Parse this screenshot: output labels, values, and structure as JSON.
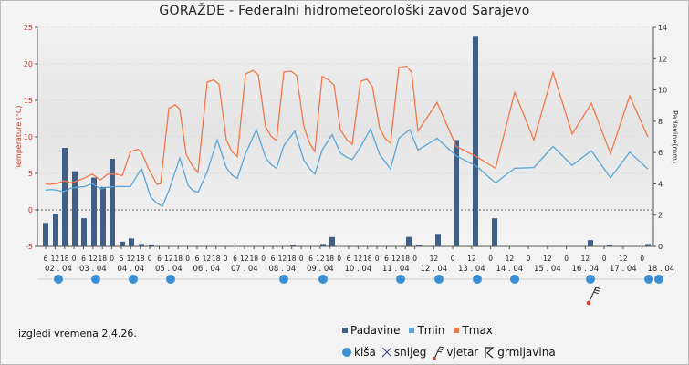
{
  "title": "GORAŽDE - Federalni hidrometeorološki zavod Sarajevo",
  "caption": "izgledi vremena 2.4.26.",
  "legend": {
    "series": [
      {
        "label": "Padavine",
        "color": "#3f5f86"
      },
      {
        "label": "Tmin",
        "color": "#5aa5d6"
      },
      {
        "label": "Tmax",
        "color": "#f0784a"
      }
    ],
    "symbols": [
      {
        "label": "kiša",
        "icon": "rain-dot-icon"
      },
      {
        "label": "snijeg",
        "icon": "snow-star-icon"
      },
      {
        "label": "vjetar",
        "icon": "wind-flag-icon"
      },
      {
        "label": "grmljavina",
        "icon": "thunder-icon"
      }
    ]
  },
  "chart_data": {
    "type": "line",
    "ylabel": "Temperature (°C)",
    "y2label": "Padavine(mm)",
    "ylim": [
      -5,
      25
    ],
    "y2lim": [
      0,
      14
    ],
    "yticks": [
      -5,
      0,
      5,
      10,
      15,
      20,
      25
    ],
    "y2ticks": [
      0,
      2,
      4,
      6,
      8,
      10,
      12,
      14
    ],
    "grid": true,
    "x_days": [
      {
        "label": "02 . 04",
        "hours": [
          6,
          12,
          18
        ]
      },
      {
        "label": "03 . 04",
        "hours": [
          0,
          6,
          12,
          18
        ]
      },
      {
        "label": "04 . 04",
        "hours": [
          0,
          6,
          12,
          18
        ]
      },
      {
        "label": "05 . 04",
        "hours": [
          0,
          6,
          12,
          18
        ]
      },
      {
        "label": "06 . 04",
        "hours": [
          0,
          6,
          12,
          18
        ]
      },
      {
        "label": "07 . 04",
        "hours": [
          0,
          6,
          12,
          18
        ]
      },
      {
        "label": "08 . 04",
        "hours": [
          0,
          6,
          12,
          18
        ]
      },
      {
        "label": "09 . 04",
        "hours": [
          0,
          6,
          12,
          18
        ]
      },
      {
        "label": "10 . 04",
        "hours": [
          0,
          6,
          12,
          18
        ]
      },
      {
        "label": "11 . 04",
        "hours": [
          0,
          6,
          12,
          18
        ]
      },
      {
        "label": "12 . 04",
        "hours": [
          0,
          12
        ]
      },
      {
        "label": "13 . 04",
        "hours": [
          0,
          12
        ]
      },
      {
        "label": "14 . 04",
        "hours": [
          0,
          12
        ]
      },
      {
        "label": "15 . 04",
        "hours": [
          0,
          12
        ]
      },
      {
        "label": "16 . 04",
        "hours": [
          0,
          12
        ]
      },
      {
        "label": "17 . 04",
        "hours": [
          0,
          12
        ]
      },
      {
        "label": "18 . 04",
        "hours": [
          0
        ]
      }
    ],
    "series": [
      {
        "name": "Tmax",
        "color": "#f0784a",
        "axis": "left",
        "points": [
          [
            50,
            3.6
          ],
          [
            54,
            3.5
          ],
          [
            62,
            3.6
          ],
          [
            70,
            4.0
          ],
          [
            78,
            3.7
          ],
          [
            85,
            4.0
          ],
          [
            93,
            4.4
          ],
          [
            101,
            4.9
          ],
          [
            110,
            4.1
          ],
          [
            118,
            4.9
          ],
          [
            127,
            4.9
          ],
          [
            134,
            4.7
          ],
          [
            143,
            8.0
          ],
          [
            151,
            8.3
          ],
          [
            155,
            7.9
          ],
          [
            163,
            5.6
          ],
          [
            172,
            3.5
          ],
          [
            176,
            3.6
          ],
          [
            185,
            13.9
          ],
          [
            192,
            14.4
          ],
          [
            197,
            13.8
          ],
          [
            204,
            7.6
          ],
          [
            211,
            6.0
          ],
          [
            217,
            5.1
          ],
          [
            227,
            17.5
          ],
          [
            234,
            17.8
          ],
          [
            240,
            17.2
          ],
          [
            248,
            9.6
          ],
          [
            254,
            8.0
          ],
          [
            260,
            7.3
          ],
          [
            269,
            18.6
          ],
          [
            277,
            19.1
          ],
          [
            283,
            18.5
          ],
          [
            291,
            11.4
          ],
          [
            297,
            10.1
          ],
          [
            303,
            9.5
          ],
          [
            311,
            18.9
          ],
          [
            319,
            19.0
          ],
          [
            325,
            18.4
          ],
          [
            333,
            11.4
          ],
          [
            339,
            9.2
          ],
          [
            345,
            8.0
          ],
          [
            353,
            18.3
          ],
          [
            360,
            17.8
          ],
          [
            366,
            17.1
          ],
          [
            373,
            11.0
          ],
          [
            380,
            9.6
          ],
          [
            386,
            9.0
          ],
          [
            395,
            17.6
          ],
          [
            402,
            17.9
          ],
          [
            408,
            16.9
          ],
          [
            416,
            11.2
          ],
          [
            422,
            9.8
          ],
          [
            428,
            9.1
          ],
          [
            437,
            19.5
          ],
          [
            445,
            19.7
          ],
          [
            451,
            18.9
          ],
          [
            458,
            10.8
          ],
          [
            479,
            14.7
          ],
          [
            500,
            8.7
          ],
          [
            522,
            7.3
          ],
          [
            543,
            5.7
          ],
          [
            564,
            16.1
          ],
          [
            585,
            9.6
          ],
          [
            606,
            18.8
          ],
          [
            627,
            10.4
          ],
          [
            648,
            14.6
          ],
          [
            669,
            7.7
          ],
          [
            690,
            15.6
          ],
          [
            710,
            10.0
          ]
        ]
      },
      {
        "name": "Tmin",
        "color": "#5aa5d6",
        "axis": "left",
        "points": [
          [
            50,
            2.7
          ],
          [
            56,
            2.8
          ],
          [
            62,
            2.7
          ],
          [
            70,
            2.5
          ],
          [
            78,
            3.0
          ],
          [
            85,
            3.1
          ],
          [
            93,
            3.2
          ],
          [
            101,
            3.6
          ],
          [
            110,
            2.9
          ],
          [
            118,
            3.1
          ],
          [
            127,
            3.2
          ],
          [
            134,
            3.2
          ],
          [
            143,
            3.2
          ],
          [
            155,
            5.7
          ],
          [
            165,
            1.8
          ],
          [
            172,
            0.9
          ],
          [
            178,
            0.5
          ],
          [
            185,
            2.6
          ],
          [
            197,
            7.1
          ],
          [
            206,
            3.4
          ],
          [
            211,
            2.7
          ],
          [
            217,
            2.4
          ],
          [
            227,
            5.2
          ],
          [
            238,
            9.6
          ],
          [
            248,
            5.8
          ],
          [
            254,
            4.8
          ],
          [
            260,
            4.3
          ],
          [
            269,
            7.7
          ],
          [
            281,
            11.0
          ],
          [
            291,
            7.2
          ],
          [
            297,
            6.2
          ],
          [
            303,
            5.7
          ],
          [
            311,
            8.8
          ],
          [
            323,
            10.8
          ],
          [
            333,
            6.8
          ],
          [
            339,
            5.7
          ],
          [
            345,
            4.9
          ],
          [
            353,
            8.2
          ],
          [
            364,
            10.3
          ],
          [
            373,
            7.8
          ],
          [
            380,
            7.2
          ],
          [
            386,
            6.9
          ],
          [
            395,
            8.6
          ],
          [
            406,
            11.1
          ],
          [
            416,
            7.6
          ],
          [
            422,
            6.6
          ],
          [
            428,
            5.6
          ],
          [
            437,
            9.8
          ],
          [
            449,
            11.0
          ],
          [
            458,
            8.2
          ],
          [
            479,
            9.8
          ],
          [
            500,
            7.4
          ],
          [
            522,
            6.0
          ],
          [
            543,
            3.7
          ],
          [
            564,
            5.7
          ],
          [
            585,
            5.8
          ],
          [
            606,
            8.7
          ],
          [
            627,
            6.1
          ],
          [
            648,
            8.1
          ],
          [
            669,
            4.4
          ],
          [
            690,
            7.9
          ],
          [
            710,
            5.6
          ]
        ]
      },
      {
        "name": "Padavine",
        "color": "#3f5f86",
        "axis": "right",
        "kind": "bar",
        "points": [
          [
            50,
            1.5
          ],
          [
            61,
            2.1
          ],
          [
            71,
            6.3
          ],
          [
            82,
            4.8
          ],
          [
            92,
            1.8
          ],
          [
            103,
            4.4
          ],
          [
            113,
            3.8
          ],
          [
            123,
            5.6
          ],
          [
            134,
            0.3
          ],
          [
            144,
            0.5
          ],
          [
            155,
            0.15
          ],
          [
            166,
            0.1
          ],
          [
            321,
            0.1
          ],
          [
            354,
            0.15
          ],
          [
            364,
            0.6
          ],
          [
            448,
            0.6
          ],
          [
            459,
            0.1
          ],
          [
            480,
            0.8
          ],
          [
            500,
            6.8
          ],
          [
            521,
            13.4
          ],
          [
            542,
            1.8
          ],
          [
            647,
            0.4
          ],
          [
            668,
            0.1
          ],
          [
            710,
            0.15
          ]
        ]
      }
    ],
    "rain_markers": [
      64,
      105,
      146,
      187,
      311,
      354,
      439,
      481,
      523,
      564,
      647,
      711,
      722
    ],
    "wind_markers": [
      648
    ]
  }
}
